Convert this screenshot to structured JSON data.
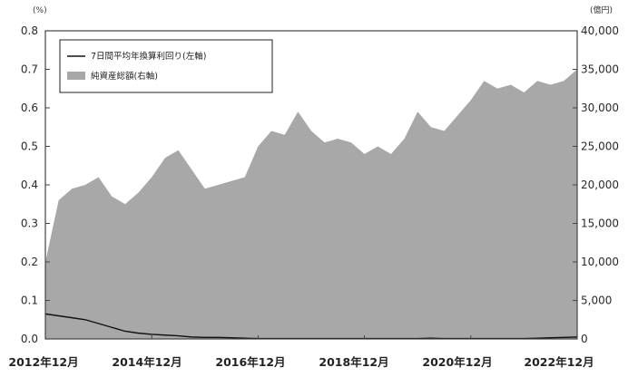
{
  "chart_data": {
    "type": "area",
    "x": [
      "2012-12",
      "2013-03",
      "2013-06",
      "2013-09",
      "2013-12",
      "2014-03",
      "2014-06",
      "2014-09",
      "2014-12",
      "2015-03",
      "2015-06",
      "2015-09",
      "2015-12",
      "2016-03",
      "2016-06",
      "2016-09",
      "2016-12",
      "2017-03",
      "2017-06",
      "2017-09",
      "2017-12",
      "2018-03",
      "2018-06",
      "2018-09",
      "2018-12",
      "2019-03",
      "2019-06",
      "2019-09",
      "2019-12",
      "2020-03",
      "2020-06",
      "2020-09",
      "2020-12",
      "2021-03",
      "2021-06",
      "2021-09",
      "2021-12",
      "2022-03",
      "2022-06",
      "2022-09",
      "2022-12"
    ],
    "series": [
      {
        "name": "7日間平均年換算利回り(左軸)",
        "axis": "left",
        "style": "line",
        "color": "#111111",
        "values": [
          0.065,
          0.06,
          0.055,
          0.05,
          0.04,
          0.03,
          0.02,
          0.015,
          0.012,
          0.01,
          0.008,
          0.005,
          0.004,
          0.004,
          0.003,
          0.002,
          0.001,
          0.001,
          0.001,
          0.001,
          0.001,
          0.001,
          0.001,
          0.001,
          0.001,
          0.001,
          0.001,
          0.001,
          0.001,
          0.002,
          0.001,
          0.001,
          0.001,
          0.001,
          0.001,
          0.001,
          0.001,
          0.002,
          0.003,
          0.004,
          0.005
        ]
      },
      {
        "name": "純資産総額(右軸)",
        "axis": "right",
        "style": "area",
        "color": "#a8a8a8",
        "values": [
          10000,
          18000,
          19500,
          20000,
          21000,
          18500,
          17500,
          19000,
          21000,
          23500,
          24500,
          22000,
          19500,
          20000,
          20500,
          21000,
          25000,
          27000,
          26500,
          29500,
          27000,
          25500,
          26000,
          25500,
          24000,
          25000,
          24000,
          26000,
          29500,
          27500,
          27000,
          29000,
          31000,
          33500,
          32500,
          33000,
          32000,
          33500,
          33000,
          33500,
          35000
        ]
      }
    ],
    "x_ticks": [
      "2012年12月",
      "2014年12月",
      "2016年12月",
      "2018年12月",
      "2020年12月",
      "2022年12月"
    ],
    "y_left": {
      "unit": "(%)",
      "ticks": [
        "0.0",
        "0.1",
        "0.2",
        "0.3",
        "0.4",
        "0.5",
        "0.6",
        "0.7",
        "0.8"
      ],
      "range": [
        0,
        0.8
      ]
    },
    "y_right": {
      "unit": "(億円)",
      "ticks": [
        "0",
        "5,000",
        "10,000",
        "15,000",
        "20,000",
        "25,000",
        "30,000",
        "35,000",
        "40,000"
      ],
      "range": [
        0,
        40000
      ]
    },
    "legend_position": "top-left",
    "grid": false
  }
}
